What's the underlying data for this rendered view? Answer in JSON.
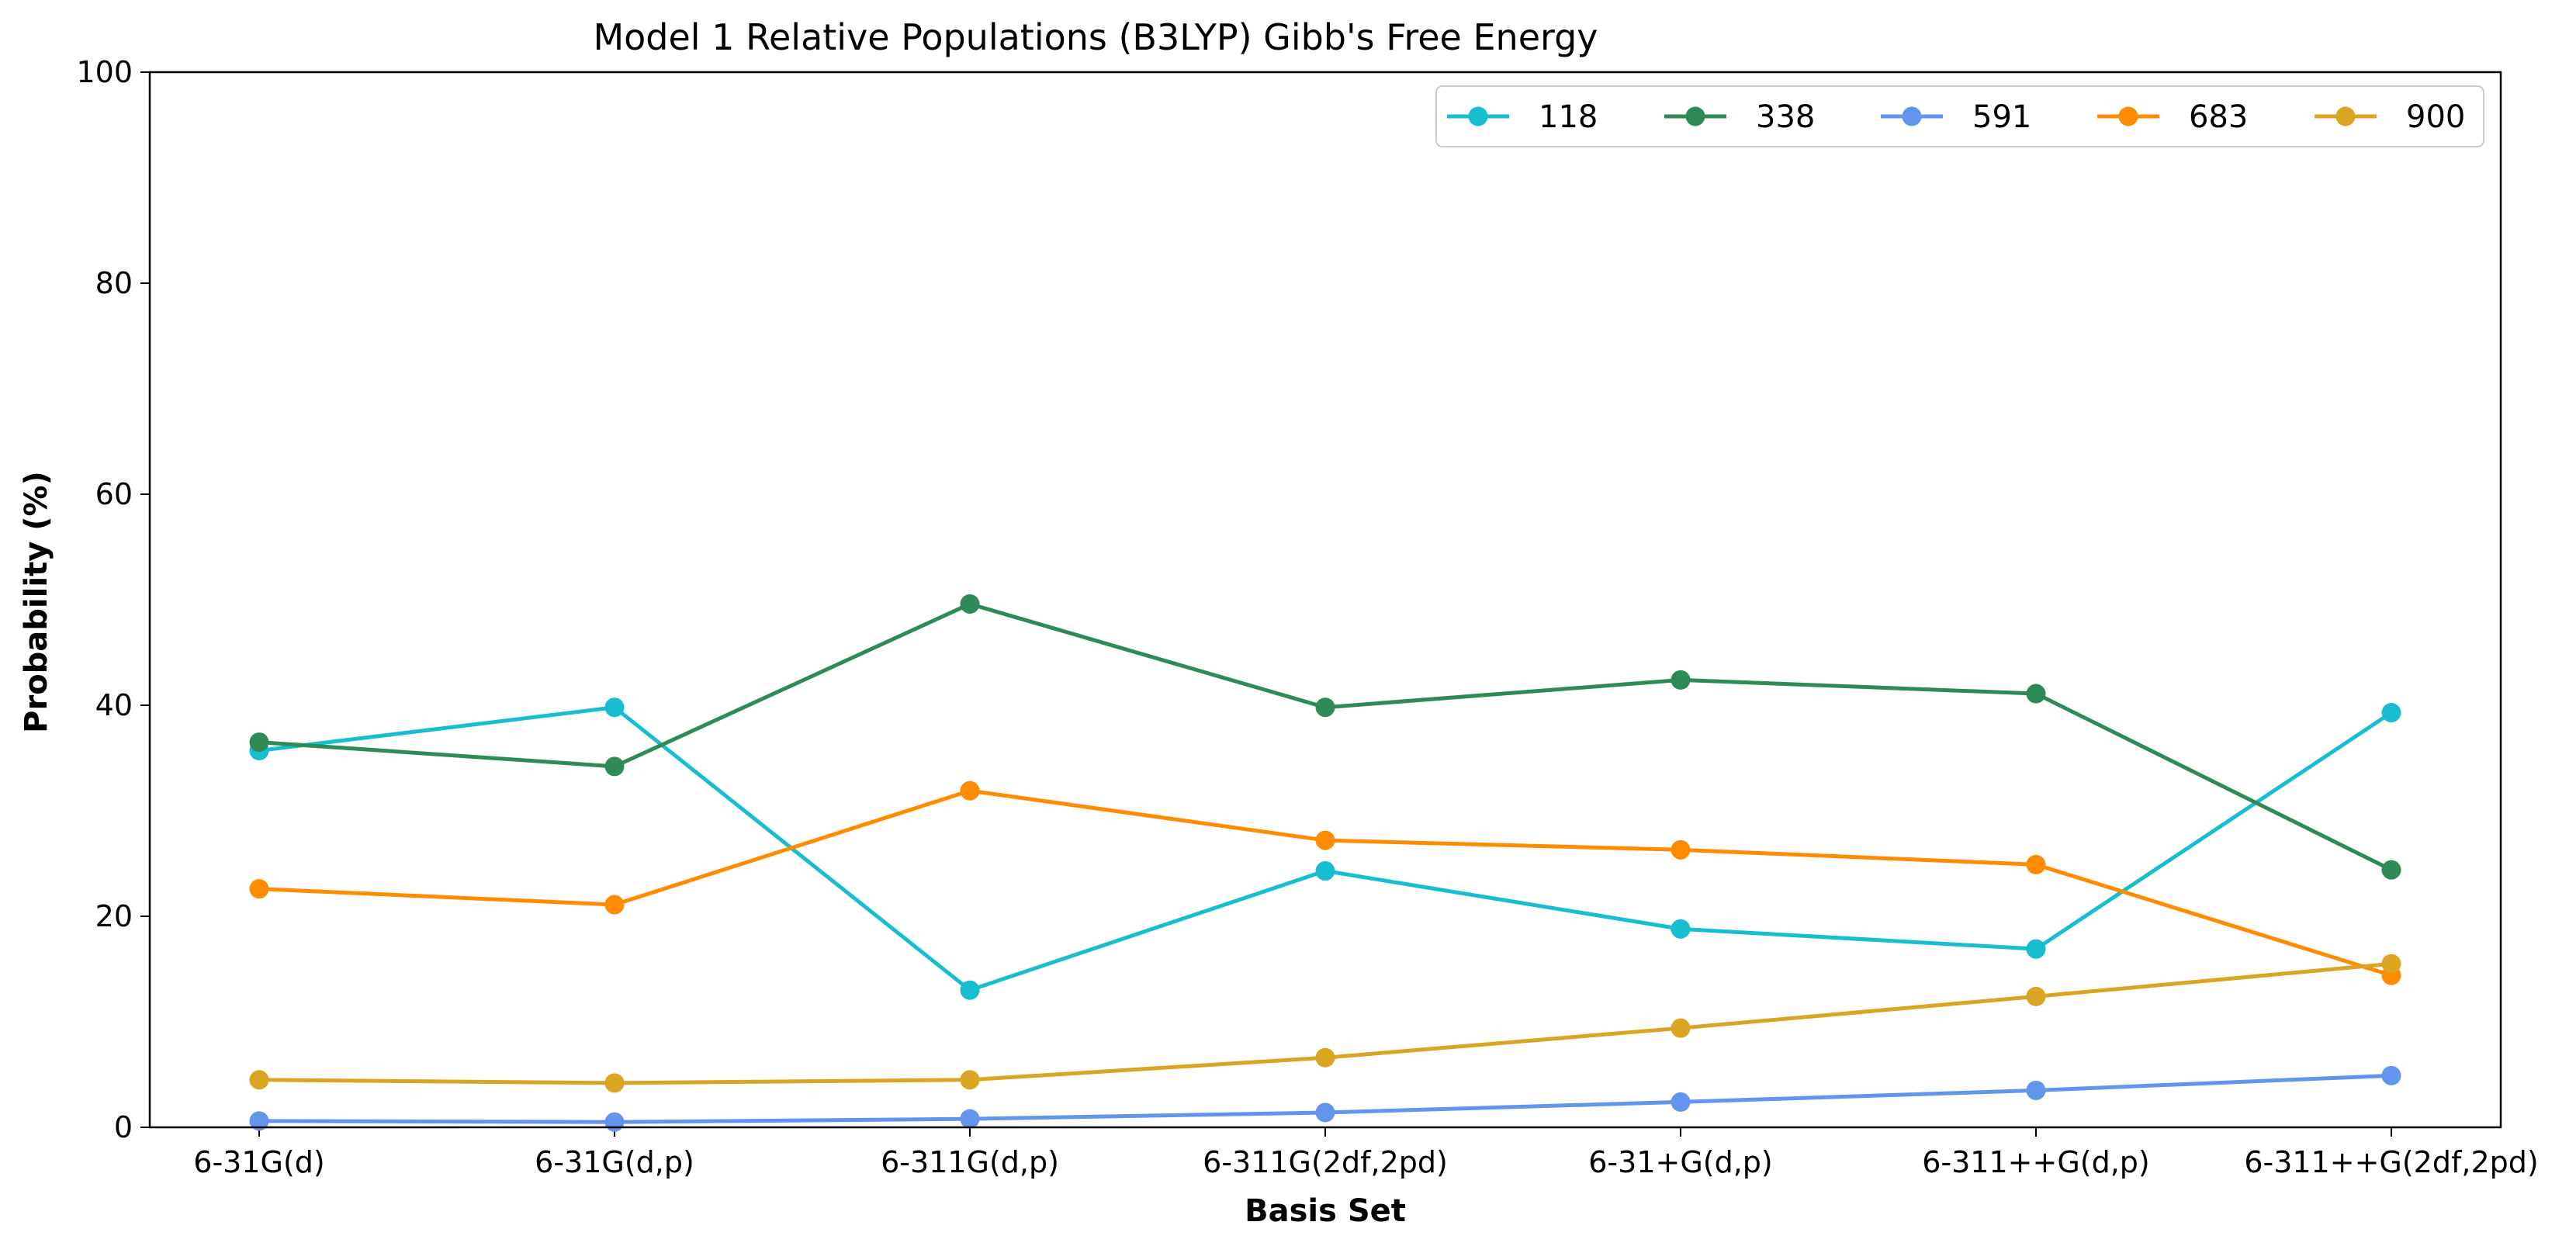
{
  "chart_data": {
    "type": "line",
    "title": "Model 1 Relative Populations (B3LYP) Gibb's Free Energy",
    "xlabel": "Basis Set",
    "ylabel": "Probability (%)",
    "ylim": [
      0,
      100
    ],
    "yticks": [
      "0",
      "20",
      "40",
      "60",
      "80",
      "100"
    ],
    "categories": [
      "6-31G(d)",
      "6-31G(d,p)",
      "6-311G(d,p)",
      "6-311G(2df,2pd)",
      "6-31+G(d,p)",
      "6-311++G(d,p)",
      "6-311++G(2df,2pd)"
    ],
    "legend_position": "top-right",
    "grid": false,
    "series": [
      {
        "name": "118",
        "color": "#17becf",
        "values": [
          35.7,
          39.8,
          13.0,
          24.3,
          18.8,
          16.9,
          39.3
        ]
      },
      {
        "name": "338",
        "color": "#2e8b57",
        "values": [
          36.5,
          34.2,
          49.6,
          39.8,
          42.4,
          41.1,
          24.4
        ]
      },
      {
        "name": "591",
        "color": "#6495ed",
        "values": [
          0.6,
          0.5,
          0.8,
          1.4,
          2.4,
          3.5,
          4.9
        ]
      },
      {
        "name": "683",
        "color": "#ff8c00",
        "values": [
          22.6,
          21.1,
          31.9,
          27.2,
          26.3,
          24.9,
          14.4
        ]
      },
      {
        "name": "900",
        "color": "#daa520",
        "values": [
          4.5,
          4.2,
          4.5,
          6.6,
          9.4,
          12.4,
          15.5
        ]
      }
    ]
  }
}
